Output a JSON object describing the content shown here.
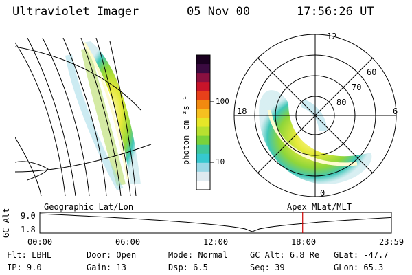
{
  "header": {
    "instrument": "Ultraviolet Imager",
    "date": "05 Nov 00",
    "time": "17:56:26 UT"
  },
  "colorbar": {
    "unit_label": "photon cm⁻²s⁻¹",
    "ticks": [
      "100",
      "10"
    ],
    "colors": [
      "#1a0020",
      "#3a0a40",
      "#8a1040",
      "#c8142a",
      "#e8401a",
      "#f28a10",
      "#f6c020",
      "#e6e628",
      "#b8e030",
      "#7ad23a",
      "#3fc69a",
      "#36c8d0",
      "#9ad8e6",
      "#dfeaf0",
      "#ffffff"
    ]
  },
  "polar": {
    "mlt_labels": [
      "12",
      "18",
      "6",
      "0"
    ],
    "lat_labels": [
      "60",
      "70",
      "80"
    ]
  },
  "labels": {
    "left_projection": "Geographic Lat/Lon",
    "right_projection": "Apex MLat/MLT"
  },
  "altitude_plot": {
    "ylabel": "GC Alt",
    "y_ticks": [
      "9.0",
      "1.8"
    ],
    "x_ticks": [
      "00:00",
      "06:00",
      "12:00",
      "18:00",
      "23:59"
    ],
    "current_time_hours": 17.94,
    "marker_color": "#cc0000"
  },
  "footer": {
    "row1": [
      {
        "key": "Flt:",
        "val": "LBHL"
      },
      {
        "key": "Door:",
        "val": "Open"
      },
      {
        "key": "Mode:",
        "val": "Normal"
      },
      {
        "key": "GC Alt:",
        "val": "6.8 Re"
      },
      {
        "key": "GLat:",
        "val": "-47.7"
      }
    ],
    "row2": [
      {
        "key": "IP:",
        "val": "9.0"
      },
      {
        "key": "Gain:",
        "val": "13"
      },
      {
        "key": "Dsp:",
        "val": "6.5"
      },
      {
        "key": "Seq:",
        "val": "39"
      },
      {
        "key": "GLon:",
        "val": "65.3"
      }
    ]
  }
}
